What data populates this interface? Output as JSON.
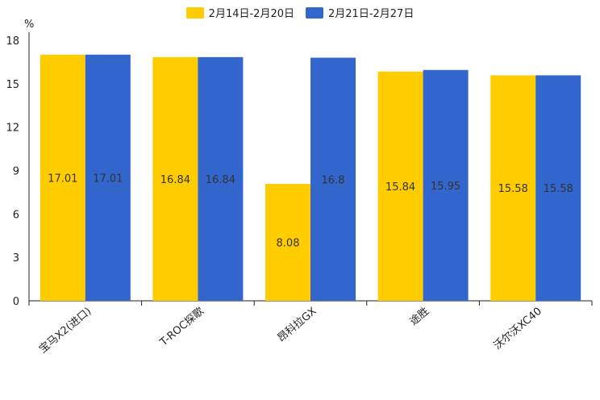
{
  "chart_data": {
    "type": "bar",
    "title": "",
    "unit_label": "%",
    "ylim": [
      0,
      18
    ],
    "yticks": [
      0,
      3,
      6,
      9,
      12,
      15,
      18
    ],
    "categories": [
      "宝马X2(进口)",
      "T-ROC探歌",
      "昂科拉GX",
      "途胜",
      "沃尔沃XC40"
    ],
    "series": [
      {
        "name": "2月14日-2月20日",
        "color": "#FFCC00",
        "values": [
          17.01,
          16.84,
          8.08,
          15.84,
          15.58
        ]
      },
      {
        "name": "2月21日-2月27日",
        "color": "#3366CC",
        "values": [
          17.01,
          16.84,
          16.8,
          15.95,
          15.58
        ]
      }
    ],
    "legend_position": "top-center"
  }
}
